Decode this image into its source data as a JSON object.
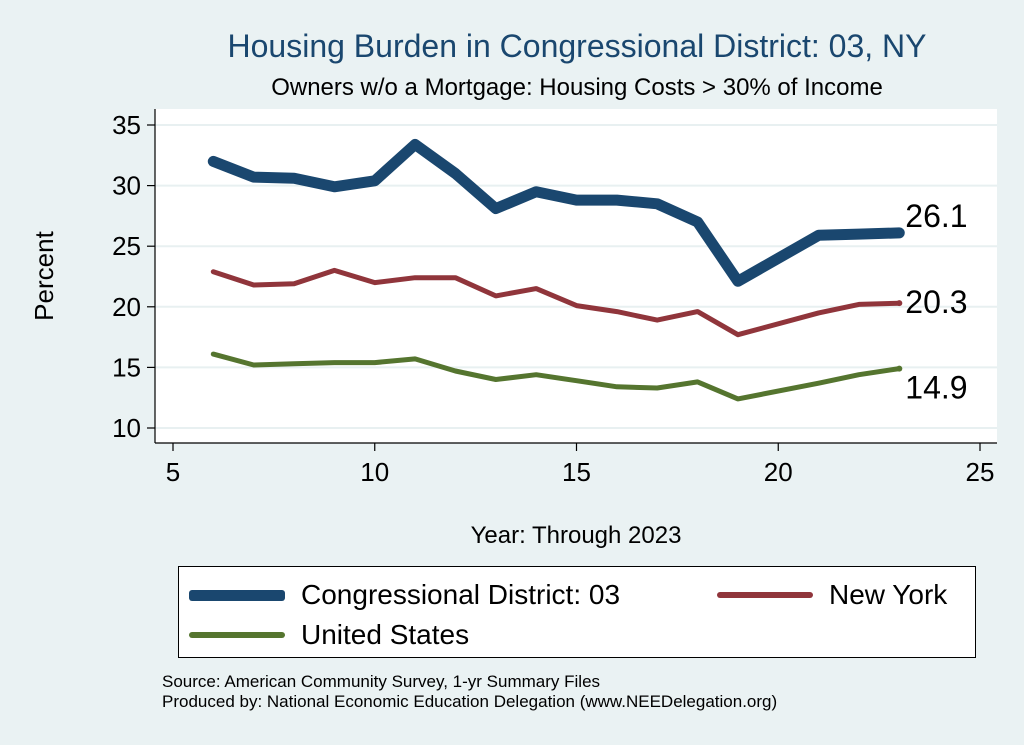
{
  "title": "Housing Burden in Congressional District:  03, NY",
  "subtitle": "Owners w/o a Mortgage: Housing Costs > 30% of Income",
  "source_line": "Source: American Community Survey, 1-yr Summary Files",
  "produced_line": "Produced by: National Economic Education Delegation (www.NEEDelegation.org)",
  "chart_data": {
    "type": "line",
    "xlabel": "Year: Through 2023",
    "ylabel": "Percent",
    "xlim": [
      5,
      25
    ],
    "ylim": [
      10,
      35
    ],
    "xticks": [
      5,
      10,
      15,
      20,
      25
    ],
    "yticks": [
      10,
      15,
      20,
      25,
      30,
      35
    ],
    "grid": true,
    "legend_position": "bottom",
    "x": [
      6,
      7,
      8,
      9,
      10,
      11,
      12,
      13,
      14,
      15,
      16,
      17,
      18,
      19,
      21,
      22,
      23
    ],
    "series": [
      {
        "name": "Congressional District:  03",
        "color": "#1a476f",
        "values": [
          32.0,
          30.7,
          30.6,
          29.9,
          30.4,
          33.4,
          31.0,
          28.1,
          29.5,
          28.8,
          28.8,
          28.5,
          27.0,
          22.1,
          25.9,
          26.0,
          26.1
        ],
        "end_label": "26.1"
      },
      {
        "name": "New York",
        "color": "#90353b",
        "values": [
          22.9,
          21.8,
          21.9,
          23.0,
          22.0,
          22.4,
          22.4,
          20.9,
          21.5,
          20.1,
          19.6,
          18.9,
          19.6,
          17.7,
          19.5,
          20.2,
          20.3
        ],
        "end_label": "20.3"
      },
      {
        "name": "United States",
        "color": "#55752f",
        "values": [
          16.1,
          15.2,
          15.3,
          15.4,
          15.4,
          15.7,
          14.7,
          14.0,
          14.4,
          13.9,
          13.4,
          13.3,
          13.8,
          12.4,
          13.7,
          14.4,
          14.9
        ],
        "end_label": "14.9"
      }
    ]
  }
}
